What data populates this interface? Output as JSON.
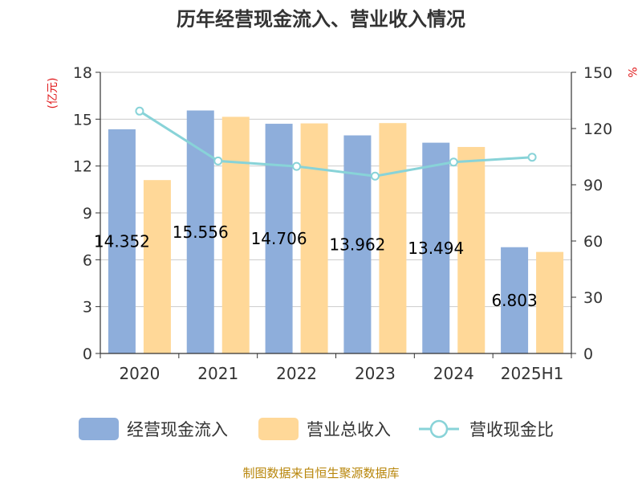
{
  "chart_data": {
    "type": "bar",
    "title": "历年经营现金流入、营业收入情况",
    "categories": [
      "2020",
      "2021",
      "2022",
      "2023",
      "2024",
      "2025H1"
    ],
    "series": [
      {
        "name": "经营现金流入",
        "type": "bar",
        "axis": "left",
        "color": "#8eaedb",
        "values": [
          14.352,
          15.556,
          14.706,
          13.962,
          13.494,
          6.803
        ]
      },
      {
        "name": "营业总收入",
        "type": "bar",
        "axis": "left",
        "color": "#ffd898",
        "values": [
          11.1,
          15.15,
          14.73,
          14.75,
          13.22,
          6.5
        ]
      },
      {
        "name": "营收现金比",
        "type": "line",
        "axis": "right",
        "color": "#88d3d8",
        "values": [
          129.3,
          102.7,
          99.8,
          94.6,
          102.1,
          104.7
        ]
      }
    ],
    "data_labels": [
      "14.352",
      "15.556",
      "14.706",
      "13.962",
      "13.494",
      "6.803"
    ],
    "yaxis_left": {
      "unit": "(亿元)",
      "min": 0,
      "max": 18,
      "ticks": [
        "0",
        "3",
        "6",
        "9",
        "12",
        "15",
        "18"
      ]
    },
    "yaxis_right": {
      "unit": "%",
      "min": 0,
      "max": 150,
      "ticks": [
        "0",
        "30",
        "60",
        "90",
        "120",
        "150"
      ]
    },
    "grid": true,
    "legend_position": "bottom"
  },
  "source": "制图数据来自恒生聚源数据库"
}
